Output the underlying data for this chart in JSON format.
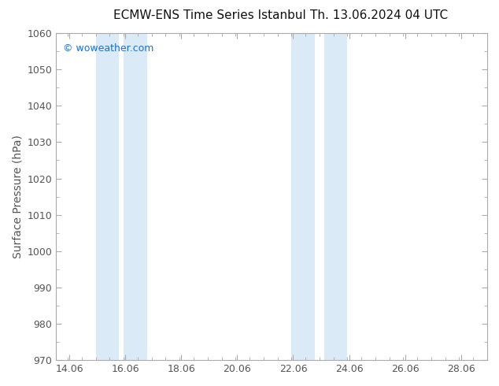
{
  "title_left": "ECMW-ENS Time Series Istanbul",
  "title_right": "Th. 13.06.2024 04 UTC",
  "ylabel": "Surface Pressure (hPa)",
  "ylim": [
    970,
    1060
  ],
  "yticks": [
    970,
    980,
    990,
    1000,
    1010,
    1020,
    1030,
    1040,
    1050,
    1060
  ],
  "xlim_start": 13.583,
  "xlim_end": 29.0,
  "xticks": [
    14.06,
    16.06,
    18.06,
    20.06,
    22.06,
    24.06,
    26.06,
    28.06
  ],
  "xtick_labels": [
    "14.06",
    "16.06",
    "18.06",
    "20.06",
    "22.06",
    "24.06",
    "26.06",
    "28.06"
  ],
  "shaded_bands": [
    {
      "x_start": 15.0,
      "x_end": 15.83
    },
    {
      "x_start": 16.0,
      "x_end": 16.83
    },
    {
      "x_start": 22.0,
      "x_end": 22.83
    },
    {
      "x_start": 23.17,
      "x_end": 24.0
    }
  ],
  "shade_color": "#daeaf7",
  "background_color": "#ffffff",
  "plot_bg_color": "#ffffff",
  "watermark": "© woweather.com",
  "watermark_color": "#1e6fcc",
  "watermark_fontsize": 9,
  "title_fontsize": 11,
  "ylabel_fontsize": 10,
  "tick_fontsize": 9,
  "spine_color": "#aaaaaa",
  "tick_color": "#555555",
  "figsize": [
    6.34,
    4.9
  ],
  "dpi": 100
}
